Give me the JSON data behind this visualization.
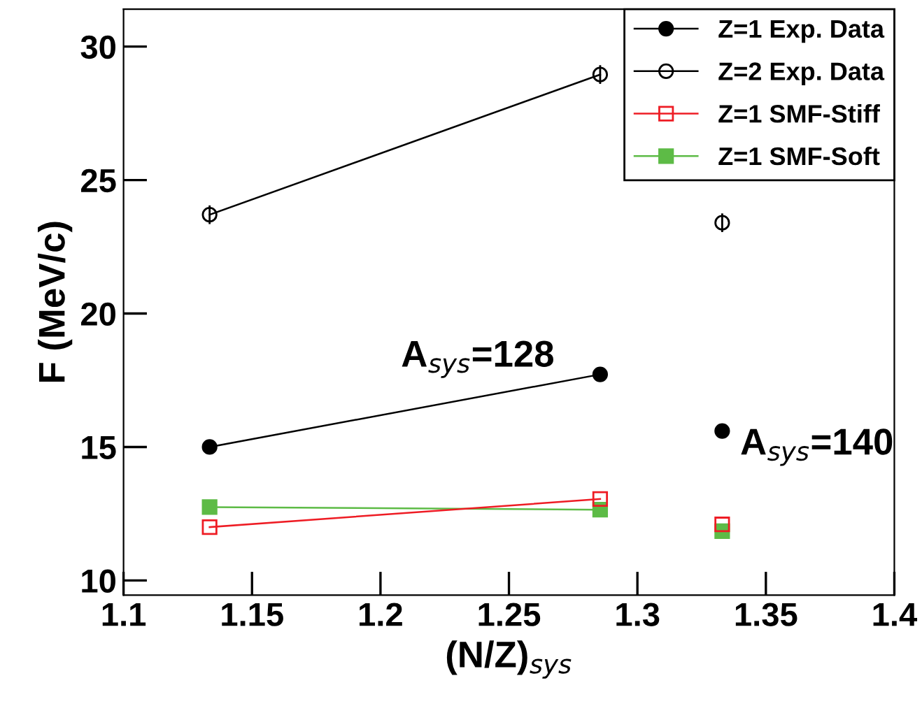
{
  "chart_data": {
    "type": "line",
    "xlabel": "(N/Z)$_{sys}$",
    "ylabel": "F (MeV/c)",
    "xlim": [
      1.1,
      1.4
    ],
    "xticks": [
      1.1,
      1.15,
      1.2,
      1.25,
      1.3,
      1.35,
      1.4
    ],
    "ylim": [
      9.45,
      31.4
    ],
    "yticks": [
      10,
      15,
      20,
      25,
      30
    ],
    "grid": false,
    "legend": "top right",
    "series": [
      {
        "name": "Z=1 Exp. Data",
        "color": "#000000",
        "marker": "circle",
        "x": [
          1.1335,
          1.2855
        ],
        "values": [
          15.0,
          17.72
        ]
      },
      {
        "name": "Z=2 Exp. Data",
        "color": "#000000",
        "marker": "circle",
        "x": [
          1.1335,
          1.2855
        ],
        "values": [
          23.7,
          28.95
        ],
        "errors": [
          0.35,
          0.35
        ]
      },
      {
        "name": "Z=1 SMF-Stiff",
        "color": "#ee1c24",
        "marker": "square",
        "x": [
          1.1335,
          1.2855
        ],
        "values": [
          12.0,
          13.05
        ]
      },
      {
        "name": "Z=1 SMF-Soft",
        "color": "#5dbb46",
        "marker": "square",
        "x": [
          1.1335,
          1.2855
        ],
        "values": [
          12.75,
          12.65
        ]
      },
      {
        "type": "scatter",
        "color": "#000000",
        "marker": "circle",
        "x": [
          1.333
        ],
        "values": [
          15.6
        ]
      },
      {
        "type": "scatter",
        "color": "#000000",
        "marker": "circle",
        "x": [
          1.333
        ],
        "values": [
          23.4
        ],
        "errors": [
          0.35
        ]
      },
      {
        "type": "scatter",
        "color": "#ee1c24",
        "marker": "square",
        "x": [
          1.333
        ],
        "values": [
          12.1
        ]
      },
      {
        "type": "scatter",
        "color": "#5dbb46",
        "marker": "square",
        "x": [
          1.333
        ],
        "values": [
          11.85
        ]
      }
    ],
    "annotations": [
      "A$_{sys}$=128",
      "A$_{sys}$=140"
    ]
  }
}
